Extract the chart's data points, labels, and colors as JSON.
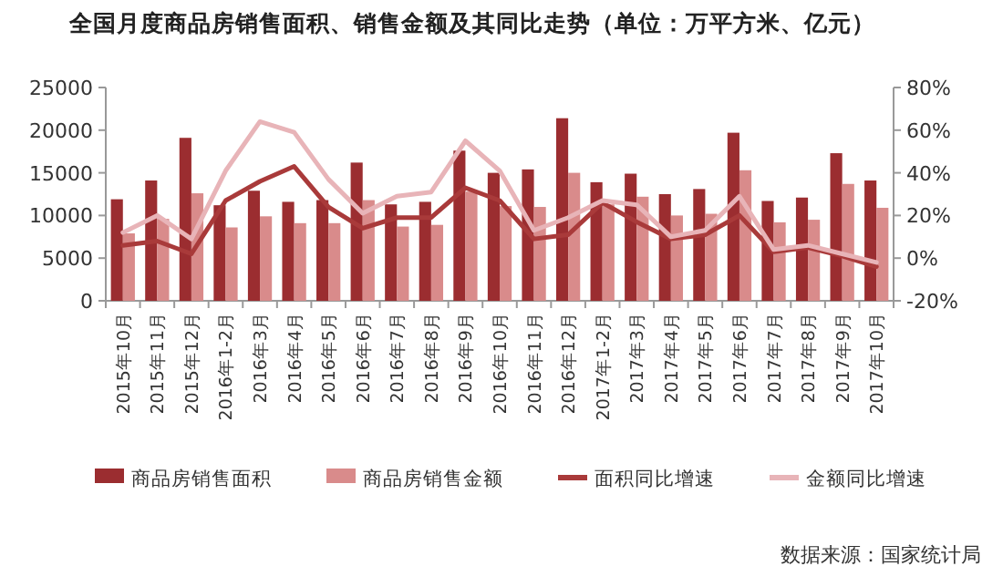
{
  "chart_data": {
    "type": "bar",
    "title": "全国月度商品房销售面积、销售金额及其同比走势（单位：万平方米、亿元）",
    "categories": [
      "2015年10月",
      "2015年11月",
      "2015年12月",
      "2016年1-2月",
      "2016年3月",
      "2016年4月",
      "2016年5月",
      "2016年6月",
      "2016年7月",
      "2016年8月",
      "2016年9月",
      "2016年10月",
      "2016年11月",
      "2016年12月",
      "2017年1-2月",
      "2017年3月",
      "2017年4月",
      "2017年5月",
      "2017年6月",
      "2017年7月",
      "2017年8月",
      "2017年9月",
      "2017年10月"
    ],
    "series": [
      {
        "name": "商品房销售面积",
        "color": "#9b2d30",
        "values": [
          11900,
          14100,
          19100,
          11200,
          12900,
          11600,
          11800,
          16200,
          11300,
          11600,
          17600,
          15000,
          15400,
          21400,
          13900,
          14900,
          12500,
          13100,
          19700,
          11700,
          12100,
          17300,
          14100
        ]
      },
      {
        "name": "商品房销售金额",
        "color": "#d98b8b",
        "values": [
          7900,
          9600,
          12600,
          8600,
          9900,
          9100,
          9100,
          11800,
          8700,
          8900,
          12800,
          11100,
          11000,
          15000,
          11300,
          12200,
          10000,
          10200,
          15300,
          9200,
          9500,
          13700,
          10900
        ]
      },
      {
        "name": "面积同比增速",
        "color": "#a93a3a",
        "type": "line",
        "axis": "y2",
        "values": [
          6,
          8,
          2,
          27,
          36,
          43,
          24,
          14,
          19,
          19,
          33,
          27,
          9,
          11,
          26,
          17,
          9,
          11,
          20,
          3,
          5,
          1,
          -4
        ]
      },
      {
        "name": "金额同比增速",
        "color": "#e8b4b8",
        "type": "line",
        "axis": "y2",
        "values": [
          12,
          20,
          9,
          41,
          64,
          59,
          37,
          21,
          29,
          31,
          55,
          41,
          13,
          19,
          27,
          25,
          10,
          13,
          29,
          4,
          6,
          2,
          -2
        ]
      }
    ],
    "ylim": [
      0,
      25000
    ],
    "yticks": [
      0,
      5000,
      10000,
      15000,
      20000,
      25000
    ],
    "y2lim": [
      -20,
      80
    ],
    "y2ticks": [
      {
        "value": -20,
        "label": "-20%"
      },
      {
        "value": 0,
        "label": "0%"
      },
      {
        "value": 20,
        "label": "20%"
      },
      {
        "value": 40,
        "label": "40%"
      },
      {
        "value": 60,
        "label": "60%"
      },
      {
        "value": 80,
        "label": "80%"
      }
    ],
    "legend": "bottom",
    "annotations": [
      "数据来源：国家统计局"
    ]
  }
}
